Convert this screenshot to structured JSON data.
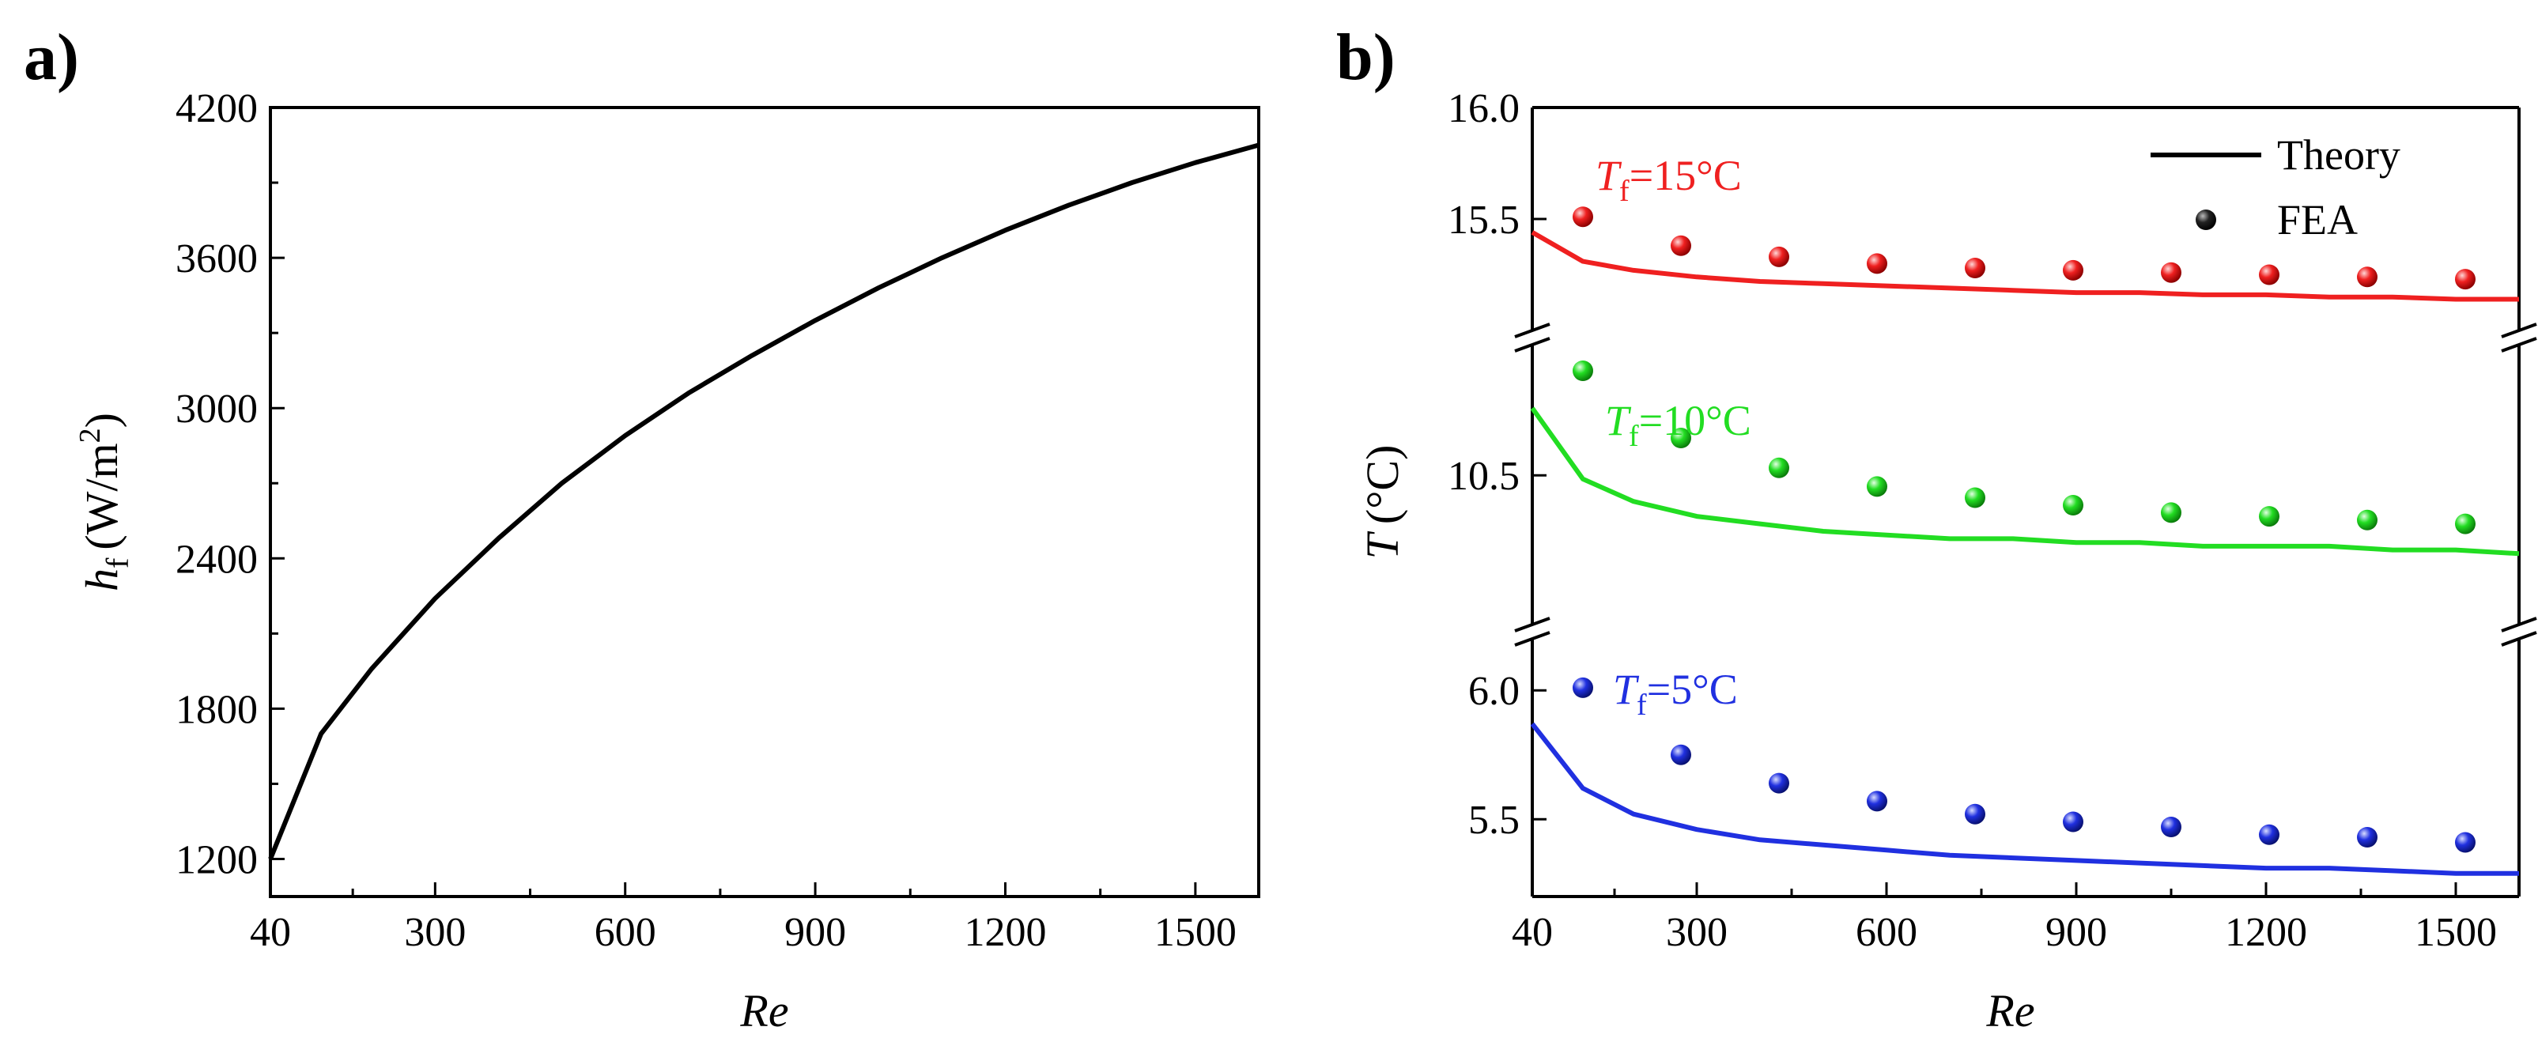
{
  "panel_a_label": "a)",
  "panel_b_label": "b)",
  "chart_data": [
    {
      "type": "line",
      "panel": "a)",
      "xlabel": "Re",
      "ylabel": {
        "symbol": "h",
        "subscript": "f",
        "unit": "(W/m",
        "sup": "2",
        "close": ")"
      },
      "xlim": [
        40,
        1600
      ],
      "ylim": [
        1050,
        4200
      ],
      "xticks": [
        40,
        300,
        600,
        900,
        1200,
        1500
      ],
      "yticks": [
        1200,
        1800,
        2400,
        3000,
        3600,
        4200
      ],
      "series": [
        {
          "name": "h_f",
          "color": "#000000",
          "x": [
            40,
            120,
            200,
            300,
            400,
            500,
            600,
            700,
            800,
            900,
            1000,
            1100,
            1200,
            1300,
            1400,
            1500,
            1600
          ],
          "y": [
            1200,
            1700,
            1960,
            2240,
            2480,
            2700,
            2890,
            3060,
            3210,
            3350,
            3480,
            3600,
            3710,
            3810,
            3900,
            3980,
            4050
          ]
        }
      ]
    },
    {
      "type": "line+scatter",
      "panel": "b)",
      "xlabel": "Re",
      "ylabel": {
        "symbol": "T",
        "unit": "(°C)"
      },
      "xlim": [
        40,
        1600
      ],
      "xticks": [
        40,
        300,
        600,
        900,
        1200,
        1500
      ],
      "legend": {
        "position": "top-right",
        "line_label": "Theory",
        "marker_label": "FEA"
      },
      "segments": [
        {
          "annotation": "=15°C",
          "label_symbol": "T",
          "label_subscript": "f",
          "color": "#ef2020",
          "ylim": [
            15.0,
            16.0
          ],
          "yticks": [
            15.5,
            16.0
          ],
          "theory": {
            "x": [
              40,
              120,
              200,
              300,
              400,
              500,
              600,
              700,
              800,
              900,
              1000,
              1100,
              1200,
              1300,
              1400,
              1500,
              1600
            ],
            "y": [
              15.44,
              15.31,
              15.27,
              15.24,
              15.22,
              15.21,
              15.2,
              15.19,
              15.18,
              15.17,
              15.17,
              15.16,
              15.16,
              15.15,
              15.15,
              15.14,
              15.14
            ]
          },
          "fea": {
            "x": [
              120,
              275,
              430,
              585,
              740,
              895,
              1050,
              1205,
              1360,
              1515
            ],
            "y": [
              15.51,
              15.38,
              15.33,
              15.3,
              15.28,
              15.27,
              15.26,
              15.25,
              15.24,
              15.23
            ]
          }
        },
        {
          "annotation": "=10°C",
          "label_symbol": "T",
          "label_subscript": "f",
          "color": "#22dd22",
          "ylim": [
            10.1,
            10.85
          ],
          "yticks": [
            10.5
          ],
          "theory": {
            "x": [
              40,
              120,
              200,
              300,
              400,
              500,
              600,
              700,
              800,
              900,
              1000,
              1100,
              1200,
              1300,
              1400,
              1500,
              1600
            ],
            "y": [
              10.68,
              10.49,
              10.43,
              10.39,
              10.37,
              10.35,
              10.34,
              10.33,
              10.33,
              10.32,
              10.32,
              10.31,
              10.31,
              10.31,
              10.3,
              10.3,
              10.29
            ]
          },
          "fea": {
            "x": [
              120,
              275,
              430,
              585,
              740,
              895,
              1050,
              1205,
              1360,
              1515
            ],
            "y": [
              10.78,
              10.6,
              10.52,
              10.47,
              10.44,
              10.42,
              10.4,
              10.39,
              10.38,
              10.37
            ]
          }
        },
        {
          "annotation": "=5°C",
          "label_symbol": "T",
          "label_subscript": "f",
          "color": "#2030e0",
          "ylim": [
            5.2,
            6.2
          ],
          "yticks": [
            5.5,
            6.0
          ],
          "theory": {
            "x": [
              40,
              120,
              200,
              300,
              400,
              500,
              600,
              700,
              800,
              900,
              1000,
              1100,
              1200,
              1300,
              1400,
              1500,
              1600
            ],
            "y": [
              5.87,
              5.62,
              5.52,
              5.46,
              5.42,
              5.4,
              5.38,
              5.36,
              5.35,
              5.34,
              5.33,
              5.32,
              5.31,
              5.31,
              5.3,
              5.29,
              5.29
            ]
          },
          "fea": {
            "x": [
              120,
              275,
              430,
              585,
              740,
              895,
              1050,
              1205,
              1360,
              1515
            ],
            "y": [
              6.01,
              5.75,
              5.64,
              5.57,
              5.52,
              5.49,
              5.47,
              5.44,
              5.43,
              5.41
            ]
          }
        }
      ]
    }
  ]
}
